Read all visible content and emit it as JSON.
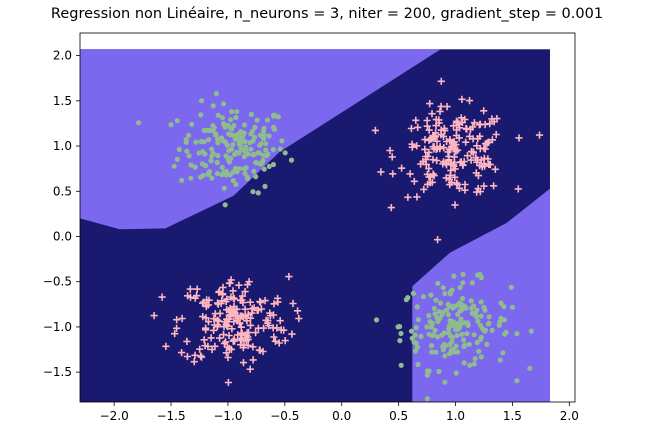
{
  "chart_data": {
    "type": "scatter",
    "title": "Regression non Linéaire, n_neurons = 3, niter = 200, gradient_step = 0.001",
    "xlim": [
      -2.3,
      2.05
    ],
    "ylim": [
      -1.83,
      2.25
    ],
    "xticks": [
      -2.0,
      -1.5,
      -1.0,
      -0.5,
      0.0,
      0.5,
      1.0,
      1.5,
      2.0
    ],
    "xtick_labels": [
      "−2.0",
      "−1.5",
      "−1.0",
      "−0.5",
      "0.0",
      "0.5",
      "1.0",
      "1.5",
      "2.0"
    ],
    "yticks": [
      -1.5,
      -1.0,
      -0.5,
      0.0,
      0.5,
      1.0,
      1.5,
      2.0
    ],
    "ytick_labels": [
      "−1.5",
      "−1.0",
      "−0.5",
      "0.0",
      "0.5",
      "1.0",
      "1.5",
      "2.0"
    ],
    "grid": false,
    "decision_regions": {
      "x_extent": [
        -2.3,
        1.83
      ],
      "y_extent": [
        -1.83,
        2.07
      ],
      "class_a_color": "#7b68ee",
      "class_b_color": "#191970",
      "class_a_upper_left": [
        [
          -2.3,
          2.07
        ],
        [
          0.87,
          2.07
        ],
        [
          -0.55,
          0.93
        ],
        [
          -0.95,
          0.45
        ],
        [
          -1.55,
          0.09
        ],
        [
          -1.95,
          0.08
        ],
        [
          -2.3,
          0.2
        ]
      ],
      "class_a_lower_right": [
        [
          1.83,
          0.53
        ],
        [
          1.83,
          -1.83
        ],
        [
          0.62,
          -1.83
        ],
        [
          0.62,
          -0.55
        ],
        [
          0.95,
          -0.18
        ],
        [
          1.45,
          0.15
        ]
      ]
    },
    "series": [
      {
        "marker": "circle",
        "color": "#8fbc8f",
        "clusters": [
          {
            "center": [
              -0.95,
              0.98
            ],
            "std": 0.24,
            "n": 180
          },
          {
            "center": [
              1.0,
              -0.98
            ],
            "std": 0.24,
            "n": 180
          }
        ]
      },
      {
        "marker": "plus",
        "color": "#ffb6c1",
        "clusters": [
          {
            "center": [
              0.98,
              0.93
            ],
            "std": 0.24,
            "n": 190
          },
          {
            "center": [
              -0.95,
              -0.93
            ],
            "std": 0.24,
            "n": 190
          }
        ]
      }
    ]
  }
}
